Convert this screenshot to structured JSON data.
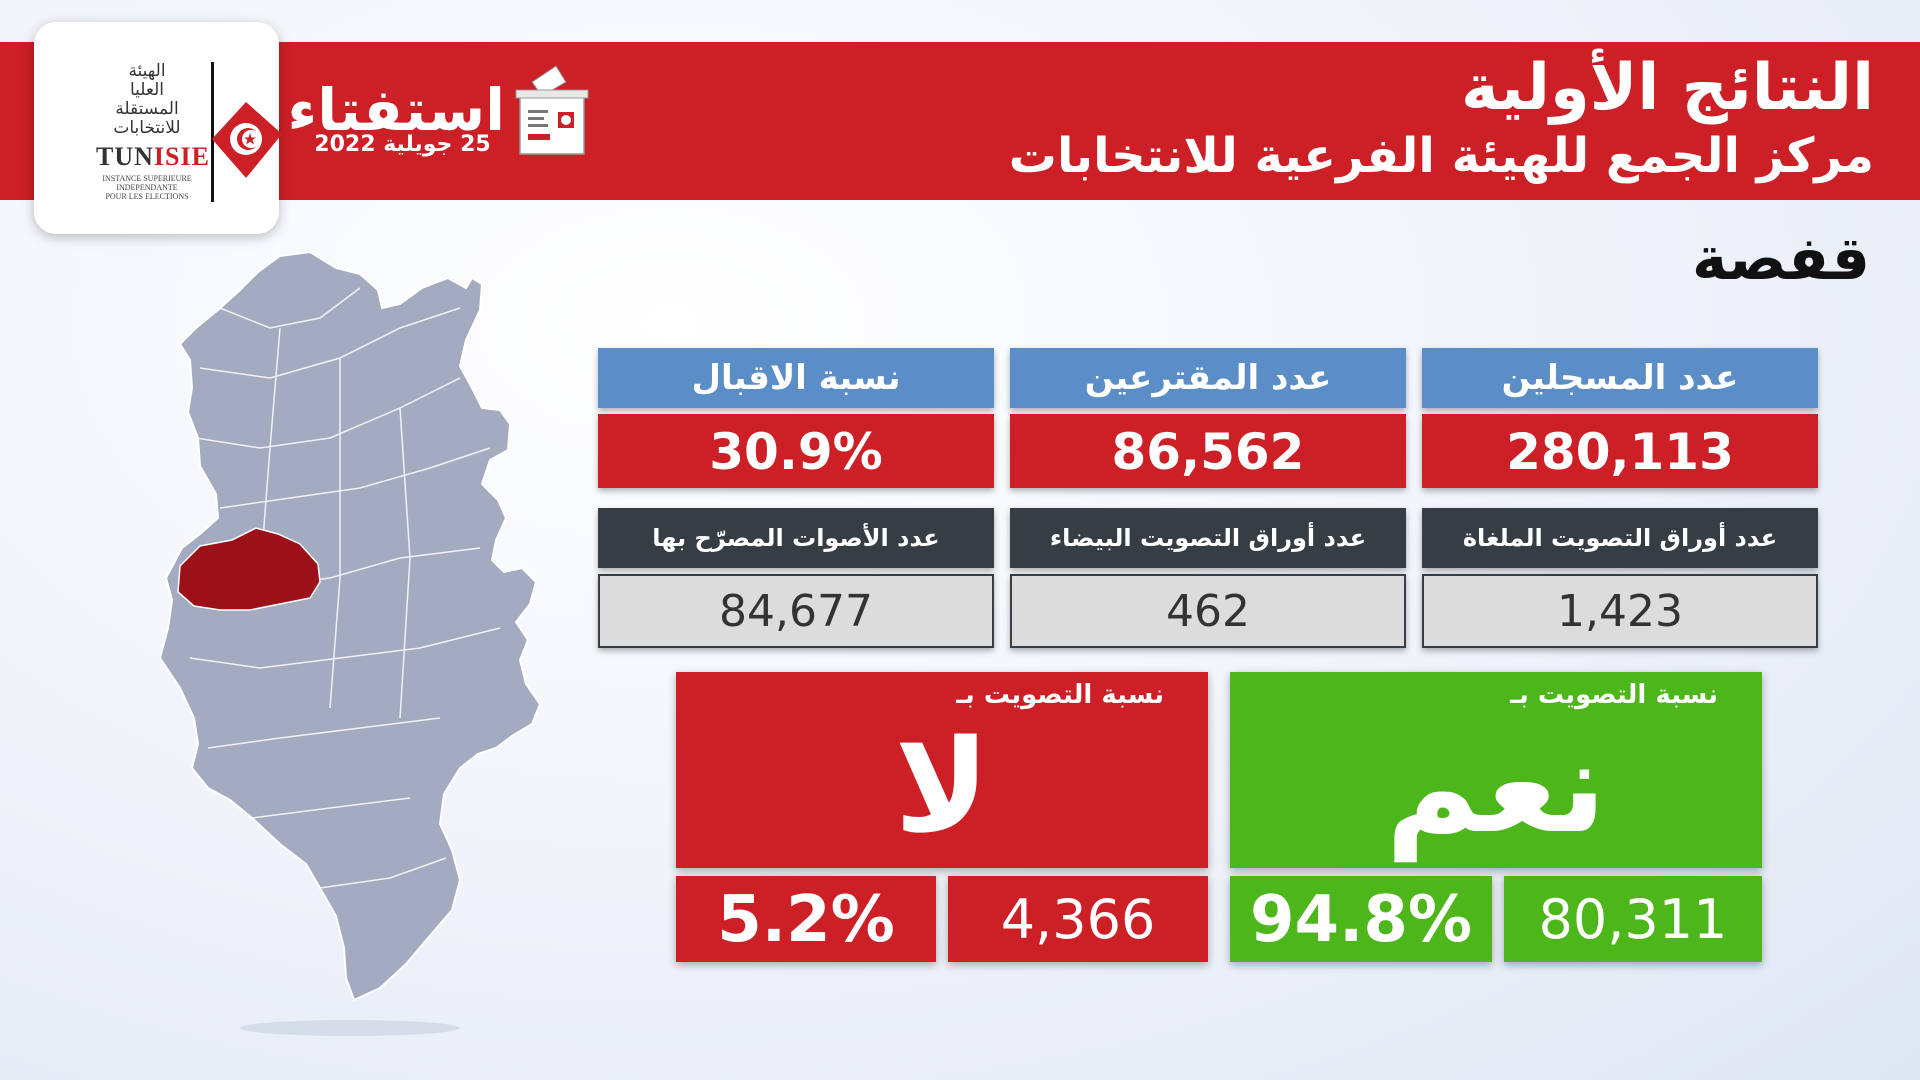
{
  "logo": {
    "arabic_lines": [
      "الهيئة",
      "العليا",
      "المستقلة",
      "للانتخابات"
    ],
    "acronym_prefix": "TUN",
    "acronym_suffix": "ISIE",
    "french_lines": [
      "INSTANCE SUPERIEURE",
      "INDEPENDANTE",
      "POUR LES ELECTIONS"
    ]
  },
  "referendum": {
    "title": "استفتاء",
    "date": "25 جويلية 2022"
  },
  "header": {
    "title": "النتائج الأولية",
    "subtitle": "مركز الجمع للهيئة الفرعية للانتخابات"
  },
  "region": "قفصة",
  "stats": {
    "registered": {
      "label": "عدد المسجلين",
      "value": "280,113"
    },
    "voters": {
      "label": "عدد المقترعين",
      "value": "86,562"
    },
    "turnout": {
      "label": "نسبة الاقبال",
      "value": "30.9%"
    },
    "cancelled": {
      "label": "عدد أوراق التصويت الملغاة",
      "value": "1,423"
    },
    "blank": {
      "label": "عدد أوراق التصويت البيضاء",
      "value": "462"
    },
    "declared": {
      "label": "عدد الأصوات المصرّح بها",
      "value": "84,677"
    }
  },
  "yes_vote": {
    "caption": "نسبة التصويت بـ",
    "word": "نعم",
    "count": "80,311",
    "percent": "94.8%"
  },
  "no_vote": {
    "caption": "نسبة التصويت بـ",
    "word": "لا",
    "count": "4,366",
    "percent": "5.2%"
  },
  "colors": {
    "red": "#cc1f26",
    "blue": "#5b8ec7",
    "dark": "#363d44",
    "green": "#4db61a",
    "map_fill": "#a4aabf",
    "map_highlight": "#9c1119"
  },
  "icons": [
    "tunisia-flag-icon",
    "ballot-box-icon",
    "tunisia-map-icon"
  ]
}
